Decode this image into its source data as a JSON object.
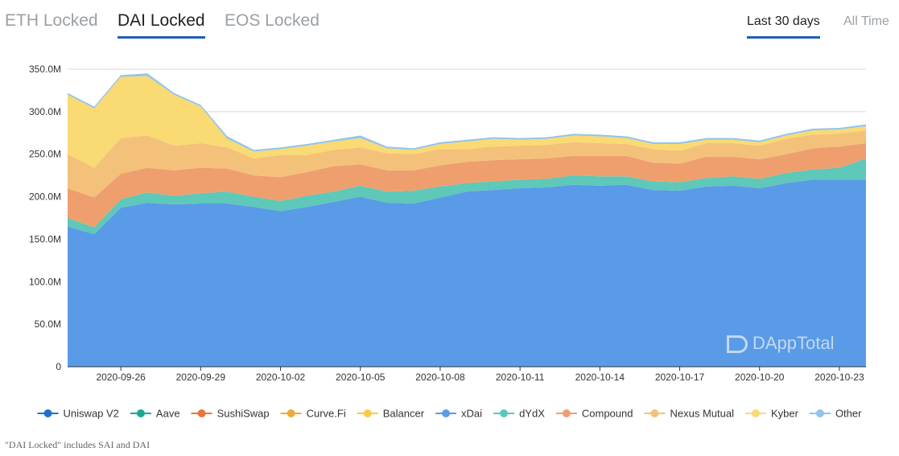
{
  "tabs": [
    "ETH Locked",
    "DAI Locked",
    "EOS Locked"
  ],
  "active_tab": 1,
  "ranges": [
    "Last 30 days",
    "All Time"
  ],
  "active_range": 0,
  "watermark": "DAppTotal",
  "footnote": "\"DAI Locked\" includes SAI and DAI",
  "chart_data": {
    "type": "area",
    "stacked": true,
    "ylim": [
      0,
      350
    ],
    "yunit": "M",
    "ytick_labels": [
      "0",
      "50.0M",
      "100.0M",
      "150.0M",
      "200.0M",
      "250.0M",
      "300.0M",
      "350.0M"
    ],
    "x": [
      "2020-09-24",
      "2020-09-25",
      "2020-09-26",
      "2020-09-27",
      "2020-09-28",
      "2020-09-29",
      "2020-09-30",
      "2020-10-01",
      "2020-10-02",
      "2020-10-03",
      "2020-10-04",
      "2020-10-05",
      "2020-10-06",
      "2020-10-07",
      "2020-10-08",
      "2020-10-09",
      "2020-10-10",
      "2020-10-11",
      "2020-10-12",
      "2020-10-13",
      "2020-10-14",
      "2020-10-15",
      "2020-10-16",
      "2020-10-17",
      "2020-10-18",
      "2020-10-19",
      "2020-10-20",
      "2020-10-21",
      "2020-10-22",
      "2020-10-23",
      "2020-10-24"
    ],
    "xtick_labels": [
      "2020-09-26",
      "2020-09-29",
      "2020-10-02",
      "2020-10-05",
      "2020-10-08",
      "2020-10-11",
      "2020-10-14",
      "2020-10-17",
      "2020-10-20",
      "2020-10-23"
    ],
    "grid": true,
    "legend_position": "bottom",
    "series": [
      {
        "name": "Uniswap V2",
        "color": "#1f6fd1",
        "values": [
          0,
          0,
          0,
          0,
          0,
          0,
          0,
          0,
          0,
          0,
          0,
          0,
          0,
          0,
          0,
          0,
          0,
          0,
          0,
          0,
          0,
          0,
          0,
          0,
          0,
          0,
          0,
          0,
          0,
          0,
          0
        ]
      },
      {
        "name": "Aave",
        "color": "#1aa894",
        "values": [
          0,
          0,
          0,
          0,
          0,
          0,
          0,
          0,
          0,
          0,
          0,
          0,
          0,
          0,
          0,
          0,
          0,
          0,
          0,
          0,
          0,
          0,
          0,
          0,
          0,
          0,
          0,
          0,
          0,
          0,
          0
        ]
      },
      {
        "name": "SushiSwap",
        "color": "#e8763a",
        "values": [
          0,
          0,
          0,
          0,
          0,
          0,
          0,
          0,
          0,
          0,
          0,
          0,
          0,
          0,
          0,
          0,
          0,
          0,
          0,
          0,
          0,
          0,
          0,
          0,
          0,
          0,
          0,
          0,
          0,
          0,
          0
        ]
      },
      {
        "name": "Curve.Fi",
        "color": "#f0a93a",
        "values": [
          0,
          0,
          0,
          0,
          0,
          0,
          0,
          0,
          0,
          0,
          0,
          0,
          0,
          0,
          0,
          0,
          0,
          0,
          0,
          0,
          0,
          0,
          0,
          0,
          0,
          0,
          0,
          0,
          0,
          0,
          0
        ]
      },
      {
        "name": "Balancer",
        "color": "#f6cd3f",
        "values": [
          0,
          0,
          0,
          0,
          0,
          0,
          0,
          0,
          0,
          0,
          0,
          0,
          0,
          0,
          0,
          0,
          0,
          0,
          0,
          0,
          0,
          0,
          0,
          0,
          0,
          0,
          0,
          0,
          0,
          0,
          0
        ]
      },
      {
        "name": "xDai",
        "color": "#5a9be8",
        "values": [
          165,
          156,
          187,
          193,
          191,
          192,
          192,
          188,
          183,
          188,
          194,
          200,
          193,
          192,
          199,
          206,
          208,
          210,
          211,
          214,
          213,
          214,
          208,
          207,
          212,
          213,
          210,
          216,
          220,
          220,
          220
        ]
      },
      {
        "name": "dYdX",
        "color": "#5ec8b9",
        "values": [
          10,
          8,
          10,
          12,
          10,
          12,
          14,
          12,
          12,
          13,
          12,
          13,
          13,
          15,
          13,
          10,
          10,
          10,
          10,
          11,
          11,
          10,
          10,
          10,
          10,
          11,
          11,
          12,
          12,
          14,
          25
        ]
      },
      {
        "name": "Compound",
        "color": "#ef9f6e",
        "values": [
          35,
          35,
          30,
          29,
          30,
          30,
          27,
          25,
          28,
          28,
          30,
          25,
          25,
          24,
          25,
          25,
          25,
          24,
          24,
          23,
          24,
          24,
          22,
          22,
          25,
          23,
          23,
          22,
          25,
          25,
          18
        ]
      },
      {
        "name": "Nexus Mutual",
        "color": "#f4c17a",
        "values": [
          40,
          35,
          42,
          38,
          29,
          29,
          25,
          20,
          26,
          20,
          19,
          20,
          20,
          19,
          19,
          15,
          16,
          16,
          16,
          16,
          15,
          14,
          16,
          15,
          16,
          16,
          16,
          18,
          16,
          15,
          15
        ]
      },
      {
        "name": "Kyber",
        "color": "#f9da73",
        "values": [
          70,
          70,
          72,
          70,
          60,
          43,
          10,
          8,
          7,
          11,
          10,
          11,
          6,
          5,
          6,
          9,
          9,
          7,
          7,
          8,
          8,
          7,
          6,
          8,
          4,
          4,
          4,
          4,
          5,
          5,
          5
        ]
      },
      {
        "name": "Other",
        "color": "#93c4ea",
        "values": [
          2,
          2,
          2,
          3,
          2,
          2,
          3,
          2,
          2,
          2,
          2,
          3,
          2,
          2,
          2,
          2,
          2,
          2,
          2,
          2,
          2,
          2,
          2,
          2,
          2,
          2,
          2,
          2,
          2,
          2,
          2
        ]
      }
    ]
  }
}
